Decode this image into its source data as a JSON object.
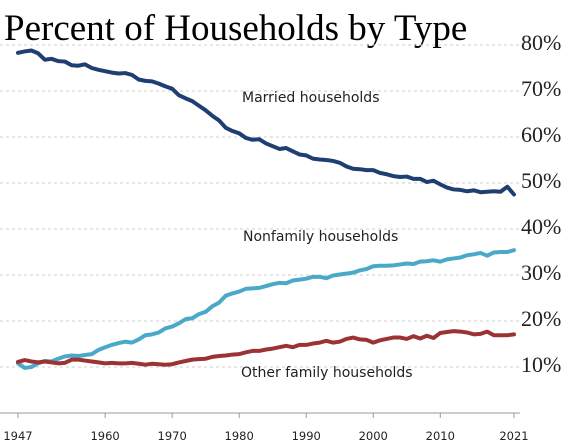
{
  "chart_data": {
    "type": "line",
    "title": "Percent of Households by Type",
    "x": [
      1947,
      1948,
      1949,
      1950,
      1951,
      1952,
      1953,
      1954,
      1955,
      1956,
      1957,
      1958,
      1959,
      1960,
      1961,
      1962,
      1963,
      1964,
      1965,
      1966,
      1967,
      1968,
      1969,
      1970,
      1971,
      1972,
      1973,
      1974,
      1975,
      1976,
      1977,
      1978,
      1979,
      1980,
      1981,
      1982,
      1983,
      1984,
      1985,
      1986,
      1987,
      1988,
      1989,
      1990,
      1991,
      1992,
      1993,
      1994,
      1995,
      1996,
      1997,
      1998,
      1999,
      2000,
      2001,
      2002,
      2003,
      2004,
      2005,
      2006,
      2007,
      2008,
      2009,
      2010,
      2011,
      2012,
      2013,
      2014,
      2015,
      2016,
      2017,
      2018,
      2019,
      2020,
      2021
    ],
    "series": [
      {
        "name": "Married households",
        "color": "#1f3f73",
        "values": [
          78.3,
          78.6,
          78.8,
          78.2,
          76.8,
          77.0,
          76.5,
          76.4,
          75.6,
          75.5,
          75.8,
          75.0,
          74.6,
          74.3,
          74.0,
          73.8,
          73.9,
          73.5,
          72.5,
          72.2,
          72.1,
          71.6,
          71.0,
          70.5,
          69.1,
          68.4,
          67.8,
          66.8,
          65.8,
          64.6,
          63.6,
          62.0,
          61.3,
          60.8,
          59.8,
          59.4,
          59.5,
          58.6,
          58.0,
          57.4,
          57.6,
          56.9,
          56.2,
          56.0,
          55.3,
          55.1,
          55.0,
          54.8,
          54.4,
          53.6,
          53.1,
          53.0,
          52.8,
          52.8,
          52.2,
          51.9,
          51.5,
          51.3,
          51.4,
          50.9,
          50.9,
          50.2,
          50.5,
          49.7,
          49.0,
          48.6,
          48.5,
          48.2,
          48.4,
          48.0,
          48.1,
          48.2,
          48.1,
          49.2,
          47.5
        ]
      },
      {
        "name": "Nonfamily households",
        "color": "#4aa9c9",
        "values": [
          10.8,
          9.8,
          10.0,
          10.8,
          11.3,
          11.2,
          11.8,
          12.3,
          12.5,
          12.4,
          12.6,
          12.8,
          13.7,
          14.3,
          14.8,
          15.2,
          15.5,
          15.3,
          16.0,
          16.9,
          17.1,
          17.5,
          18.4,
          18.8,
          19.5,
          20.4,
          20.6,
          21.5,
          22.0,
          23.2,
          24.0,
          25.5,
          26.0,
          26.4,
          27.0,
          27.1,
          27.2,
          27.6,
          28.0,
          28.3,
          28.2,
          28.8,
          29.0,
          29.2,
          29.6,
          29.6,
          29.3,
          29.9,
          30.1,
          30.3,
          30.5,
          31.0,
          31.3,
          31.9,
          32.0,
          32.0,
          32.1,
          32.3,
          32.5,
          32.4,
          32.9,
          33.0,
          33.2,
          32.9,
          33.4,
          33.6,
          33.8,
          34.3,
          34.5,
          34.8,
          34.2,
          34.9,
          35.0,
          35.0,
          35.4
        ]
      },
      {
        "name": "Other family households",
        "color": "#9b3335",
        "values": [
          11.1,
          11.5,
          11.2,
          11.0,
          11.2,
          11.0,
          10.8,
          10.9,
          11.6,
          11.6,
          11.4,
          11.2,
          11.0,
          10.8,
          10.9,
          10.8,
          10.8,
          10.9,
          10.7,
          10.5,
          10.7,
          10.6,
          10.5,
          10.6,
          11.0,
          11.3,
          11.6,
          11.7,
          11.8,
          12.2,
          12.4,
          12.5,
          12.7,
          12.8,
          13.2,
          13.5,
          13.5,
          13.8,
          14.0,
          14.3,
          14.6,
          14.3,
          14.8,
          14.8,
          15.1,
          15.3,
          15.7,
          15.3,
          15.5,
          16.1,
          16.4,
          16.0,
          15.9,
          15.3,
          15.8,
          16.1,
          16.4,
          16.4,
          16.1,
          16.7,
          16.2,
          16.8,
          16.3,
          17.4,
          17.6,
          17.8,
          17.7,
          17.5,
          17.1,
          17.2,
          17.7,
          16.9,
          16.9,
          16.9,
          17.1
        ]
      }
    ],
    "xlim": [
      1947,
      2021
    ],
    "xticks": [
      1947,
      1960,
      1970,
      1980,
      1990,
      2000,
      2010,
      2021
    ],
    "ylim": [
      0,
      85
    ],
    "yticks": [
      {
        "value": 10,
        "label": "10%"
      },
      {
        "value": 20,
        "label": "20%"
      },
      {
        "value": 30,
        "label": "30%"
      },
      {
        "value": 40,
        "label": "40%"
      },
      {
        "value": 50,
        "label": "50%"
      },
      {
        "value": 60,
        "label": "60%"
      },
      {
        "value": 70,
        "label": "70%"
      },
      {
        "value": 80,
        "label": "80%"
      }
    ],
    "grid": true
  }
}
